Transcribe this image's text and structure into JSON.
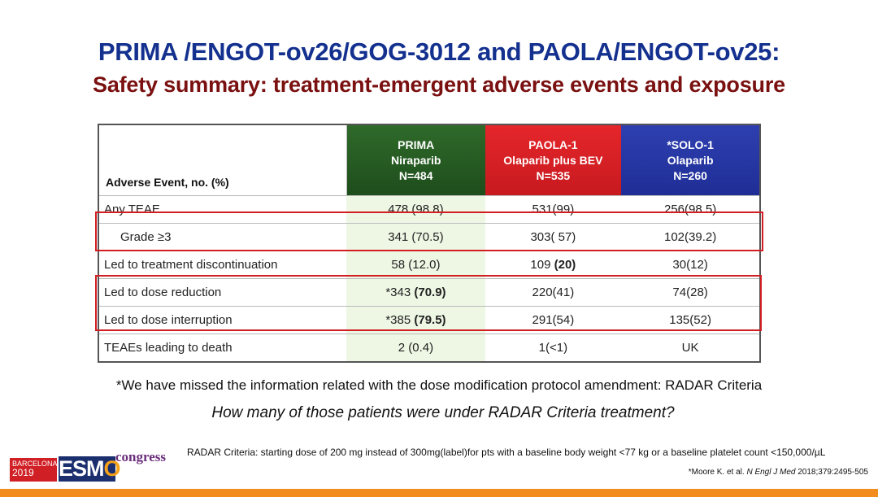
{
  "title": "PRIMA /ENGOT-ov26/GOG-3012 and PAOLA/ENGOT-ov25:",
  "subtitle": "Safety summary: treatment-emergent adverse events and exposure",
  "table": {
    "header_label": "Adverse Event, no. (%)",
    "columns": [
      {
        "line1": "PRIMA",
        "line2": "Niraparib",
        "line3": "N=484",
        "color": "#2f6a2a"
      },
      {
        "line1": "PAOLA-1",
        "line2": "Olaparib plus BEV",
        "line3": "N=535",
        "color": "#e5262b"
      },
      {
        "line1": "*SOLO-1",
        "line2": "Olaparib",
        "line3": "N=260",
        "color": "#2e3fb0"
      }
    ],
    "rows": [
      {
        "label": "Any TEAE",
        "prima": "478 (98.8)",
        "paola": "531(99)",
        "solo": "256(98.5)"
      },
      {
        "label": "Grade ≥3",
        "prima": "341 (70.5)",
        "paola": "303( 57)",
        "solo": "102(39.2)"
      },
      {
        "label": "Led to treatment discontinuation",
        "prima": "58 (12.0)",
        "paola_pre": "109 ",
        "paola_bold": "(20)",
        "solo": "30(12)"
      },
      {
        "label": "Led to dose reduction",
        "prima_pre": "*343 ",
        "prima_bold": "(70.9)",
        "paola": "220(41)",
        "solo": "74(28)"
      },
      {
        "label": "Led to dose interruption",
        "prima_pre": "*385 ",
        "prima_bold": "(79.5)",
        "paola": "291(54)",
        "solo": "135(52)"
      },
      {
        "label": "TEAEs leading to death",
        "prima": "2 (0.4)",
        "paola": "1(<1)",
        "solo": "UK"
      }
    ],
    "highlight_color": "#d21e22"
  },
  "footnote": "*We have missed the information related with the dose modification protocol amendment: RADAR Criteria",
  "question": "How many of those patients were under RADAR Criteria treatment?",
  "radar_note": "RADAR Criteria: starting dose of 200 mg instead of 300mg(label)for pts with a baseline body weight <77 kg or a baseline platelet count <150,000/µL",
  "reference": {
    "prefix": "*Moore K. et al. ",
    "journal": "N Engl J Med",
    "suffix": " 2018;379:2495-505"
  },
  "logo": {
    "city": "BARCELONA",
    "year": "2019",
    "esmo_pre": "ESM",
    "esmo_o": "O",
    "congress": "congress"
  }
}
